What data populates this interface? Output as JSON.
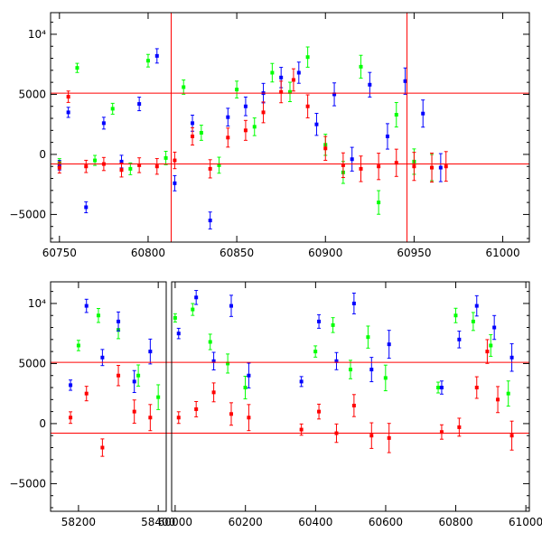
{
  "chart_data": [
    {
      "type": "scatter",
      "panel": "top",
      "title": "",
      "xlabel": "",
      "ylabel": "",
      "xlim": [
        60745,
        61015
      ],
      "ylim": [
        -7300,
        11800
      ],
      "x_ticks": [
        60750,
        60800,
        60850,
        60900,
        60950,
        61000
      ],
      "x_tick_labels": [
        "60750",
        "60800",
        "60850",
        "60900",
        "60950",
        "61000"
      ],
      "y_ticks": [
        -5000,
        0,
        5000,
        10000
      ],
      "y_tick_labels": [
        "−5000",
        "0",
        "5000",
        "10⁴"
      ],
      "hlines": [
        5100,
        -800
      ],
      "vlines": [
        60813,
        60946
      ],
      "hline_color": "#ff0000",
      "series_colors": {
        "green": "#00ff00",
        "blue": "#0000ff",
        "red": "#ff0000"
      },
      "error_bars": true,
      "series": [
        {
          "color": "green",
          "points": [
            [
              60750,
              -700
            ],
            [
              60760,
              7200
            ],
            [
              60770,
              -500
            ],
            [
              60780,
              3800
            ],
            [
              60790,
              -1200
            ],
            [
              60800,
              7800
            ],
            [
              60810,
              -300
            ],
            [
              60820,
              5600
            ],
            [
              60830,
              1800
            ],
            [
              60840,
              -900
            ],
            [
              60850,
              5400
            ],
            [
              60860,
              2300
            ],
            [
              60870,
              6800
            ],
            [
              60880,
              5200
            ],
            [
              60890,
              8100
            ],
            [
              60900,
              800
            ],
            [
              60910,
              -1500
            ],
            [
              60920,
              7300
            ],
            [
              60930,
              -4000
            ],
            [
              60940,
              3300
            ],
            [
              60950,
              -600
            ],
            [
              60960,
              -1100
            ]
          ]
        },
        {
          "color": "blue",
          "points": [
            [
              60750,
              -900
            ],
            [
              60755,
              3500
            ],
            [
              60765,
              -4400
            ],
            [
              60775,
              2600
            ],
            [
              60785,
              -600
            ],
            [
              60795,
              4200
            ],
            [
              60805,
              8200
            ],
            [
              60815,
              -2400
            ],
            [
              60825,
              2600
            ],
            [
              60835,
              -5500
            ],
            [
              60845,
              3100
            ],
            [
              60855,
              4000
            ],
            [
              60865,
              5100
            ],
            [
              60875,
              6400
            ],
            [
              60885,
              6800
            ],
            [
              60895,
              2500
            ],
            [
              60905,
              5000
            ],
            [
              60915,
              -400
            ],
            [
              60925,
              5800
            ],
            [
              60935,
              1500
            ],
            [
              60945,
              6100
            ],
            [
              60955,
              3400
            ],
            [
              60965,
              -1100
            ]
          ]
        },
        {
          "color": "red",
          "points": [
            [
              60750,
              -1100
            ],
            [
              60755,
              4800
            ],
            [
              60765,
              -1000
            ],
            [
              60775,
              -800
            ],
            [
              60785,
              -1300
            ],
            [
              60795,
              -900
            ],
            [
              60805,
              -1000
            ],
            [
              60815,
              -500
            ],
            [
              60825,
              1500
            ],
            [
              60835,
              -1200
            ],
            [
              60845,
              1400
            ],
            [
              60855,
              2000
            ],
            [
              60865,
              3500
            ],
            [
              60875,
              5200
            ],
            [
              60882,
              6200
            ],
            [
              60890,
              4000
            ],
            [
              60900,
              500
            ],
            [
              60910,
              -900
            ],
            [
              60920,
              -1200
            ],
            [
              60930,
              -1000
            ],
            [
              60940,
              -700
            ],
            [
              60950,
              -1000
            ],
            [
              60960,
              -1100
            ],
            [
              60968,
              -1000
            ]
          ]
        }
      ]
    },
    {
      "type": "scatter",
      "panel": "bottom",
      "title": "",
      "xlabel": "",
      "ylabel": "",
      "broken_x_axis": true,
      "x_ranges": [
        [
          58130,
          58420
        ],
        [
          59990,
          60265
        ],
        [
          60265,
          61010
        ]
      ],
      "ylim": [
        -7300,
        11800
      ],
      "x_tick_labels_left": [
        "58200",
        "58400"
      ],
      "x_tick_labels_right": [
        "60000",
        "60200",
        "60400",
        "60600",
        "60800",
        "61000"
      ],
      "y_ticks": [
        -5000,
        0,
        5000,
        10000
      ],
      "y_tick_labels": [
        "−5000",
        "0",
        "5000",
        "10⁴"
      ],
      "hlines": [
        5100,
        -800
      ],
      "hline_color": "#ff0000",
      "error_bars": true,
      "series": [
        {
          "color": "green",
          "points": [
            [
              58200,
              6500
            ],
            [
              58250,
              9000
            ],
            [
              58300,
              7800
            ],
            [
              58350,
              4000
            ],
            [
              58400,
              2200
            ],
            [
              60000,
              8800
            ],
            [
              60050,
              9500
            ],
            [
              60100,
              6800
            ],
            [
              60150,
              5000
            ],
            [
              60200,
              3000
            ],
            [
              60400,
              6000
            ],
            [
              60450,
              8200
            ],
            [
              60500,
              4500
            ],
            [
              60550,
              7200
            ],
            [
              60600,
              3800
            ],
            [
              60750,
              3000
            ],
            [
              60800,
              9000
            ],
            [
              60850,
              8500
            ],
            [
              60900,
              6500
            ],
            [
              60950,
              2500
            ]
          ]
        },
        {
          "color": "blue",
          "points": [
            [
              58180,
              3200
            ],
            [
              58220,
              9800
            ],
            [
              58260,
              5500
            ],
            [
              58300,
              8500
            ],
            [
              58340,
              3500
            ],
            [
              58380,
              6000
            ],
            [
              60010,
              7500
            ],
            [
              60060,
              10500
            ],
            [
              60110,
              5200
            ],
            [
              60160,
              9800
            ],
            [
              60210,
              4000
            ],
            [
              60360,
              3500
            ],
            [
              60410,
              8500
            ],
            [
              60460,
              5200
            ],
            [
              60510,
              10000
            ],
            [
              60560,
              4500
            ],
            [
              60610,
              6600
            ],
            [
              60760,
              3000
            ],
            [
              60810,
              7000
            ],
            [
              60860,
              9800
            ],
            [
              60910,
              8000
            ],
            [
              60960,
              5500
            ]
          ]
        },
        {
          "color": "red",
          "points": [
            [
              58180,
              500
            ],
            [
              58220,
              2500
            ],
            [
              58260,
              -2000
            ],
            [
              58300,
              4000
            ],
            [
              58340,
              1000
            ],
            [
              58380,
              500
            ],
            [
              60010,
              500
            ],
            [
              60060,
              1200
            ],
            [
              60110,
              2600
            ],
            [
              60160,
              800
            ],
            [
              60210,
              500
            ],
            [
              60360,
              -500
            ],
            [
              60410,
              1000
            ],
            [
              60460,
              -800
            ],
            [
              60510,
              1500
            ],
            [
              60560,
              -1000
            ],
            [
              60610,
              -1200
            ],
            [
              60760,
              -700
            ],
            [
              60810,
              -300
            ],
            [
              60860,
              3000
            ],
            [
              60890,
              6000
            ],
            [
              60920,
              2000
            ],
            [
              60960,
              -1000
            ]
          ]
        }
      ]
    }
  ]
}
